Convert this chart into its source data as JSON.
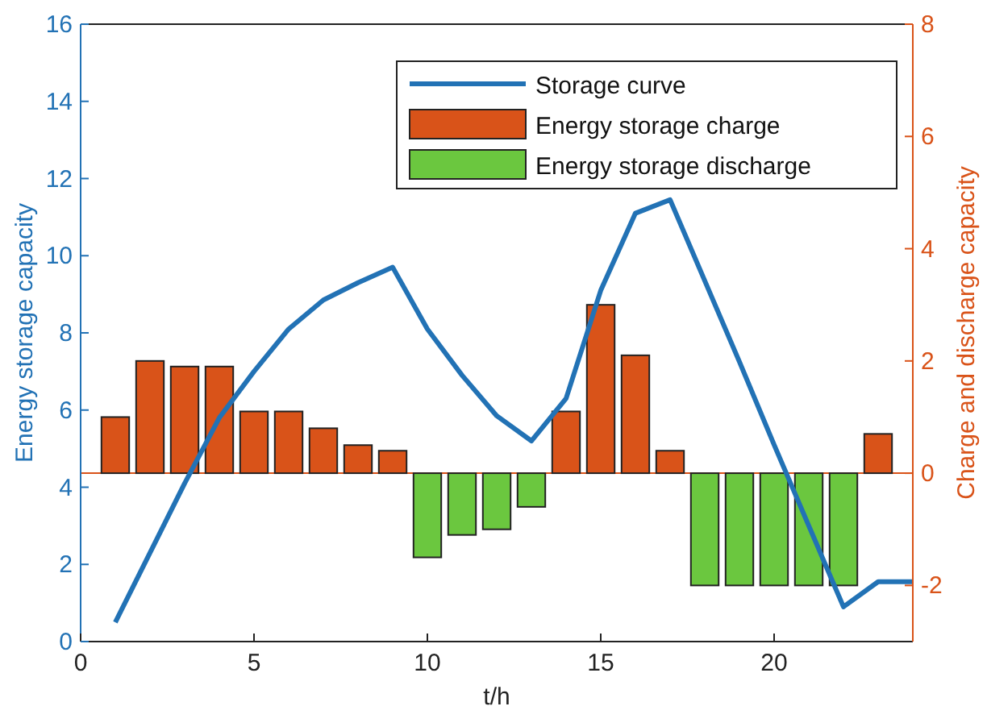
{
  "chart_data": {
    "type": "line",
    "xlabel": "t/h",
    "ylabel": "Energy storage capacity",
    "y2label": "Charge and discharge capacity",
    "x": [
      1,
      2,
      3,
      4,
      5,
      6,
      7,
      8,
      9,
      10,
      11,
      12,
      13,
      14,
      15,
      16,
      17,
      18,
      19,
      20,
      21,
      22,
      23,
      24
    ],
    "series": [
      {
        "name": "Storage curve",
        "color": "#2272b5",
        "values": [
          0.5,
          2.3,
          4.1,
          5.8,
          7.0,
          8.1,
          8.85,
          9.3,
          9.7,
          8.1,
          6.9,
          5.85,
          5.2,
          6.3,
          9.1,
          11.1,
          11.45,
          9.35,
          7.25,
          5.1,
          3.0,
          0.9,
          1.55,
          1.55
        ]
      },
      {
        "name": "Energy storage charge",
        "type": "bar",
        "axis": "y2",
        "color": "#d95319",
        "values": [
          1.0,
          2.0,
          1.9,
          1.9,
          1.1,
          1.1,
          0.8,
          0.5,
          0.4,
          null,
          null,
          null,
          null,
          1.1,
          3.0,
          2.1,
          0.4,
          null,
          null,
          null,
          null,
          null,
          0.7,
          null
        ]
      },
      {
        "name": "Energy storage discharge",
        "type": "bar",
        "axis": "y2",
        "color": "#6bc73f",
        "values": [
          null,
          null,
          null,
          null,
          null,
          null,
          null,
          null,
          null,
          -1.5,
          -1.1,
          -1.0,
          -0.6,
          null,
          null,
          null,
          null,
          -2.0,
          -2.0,
          -2.0,
          -2.0,
          -2.0,
          null,
          null
        ]
      }
    ],
    "xlim": [
      0,
      24
    ],
    "xticks": [
      0,
      5,
      10,
      15,
      20
    ],
    "ylim": [
      0,
      16
    ],
    "yticks": [
      0,
      2,
      4,
      6,
      8,
      10,
      12,
      14,
      16
    ],
    "y2lim": [
      -3,
      8
    ],
    "y2ticks": [
      -2,
      0,
      2,
      4,
      6,
      8
    ],
    "ref_lines": [
      {
        "axis": "y2",
        "value": 0,
        "color": "#d95319"
      }
    ],
    "legend": "top right",
    "grid": false
  }
}
